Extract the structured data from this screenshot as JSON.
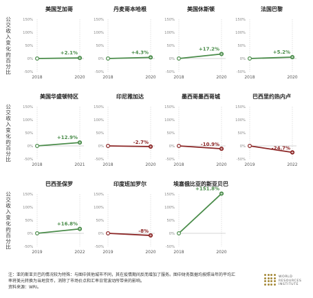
{
  "panels": [
    {
      "title": "美国芝加哥",
      "start": "2018",
      "end": "2020",
      "change": 2.1,
      "label": "+2.1%"
    },
    {
      "title": "丹麦哥本哈根",
      "start": "2018",
      "end": "2020",
      "change": 4.3,
      "label": "+4.3%"
    },
    {
      "title": "美国休斯顿",
      "start": "2018",
      "end": "2020",
      "change": 17.2,
      "label": "+17.2%"
    },
    {
      "title": "法国巴黎",
      "start": "2018",
      "end": "2020",
      "change": 5.2,
      "label": "+5.2%"
    },
    {
      "title": "美国华盛顿特区",
      "start": "2018",
      "end": "2021",
      "change": 12.9,
      "label": "+12.9%"
    },
    {
      "title": "印尼雅加达",
      "start": "2018",
      "end": "2020",
      "change": -2.7,
      "label": "-2.7%"
    },
    {
      "title": "墨西哥墨西哥城",
      "start": "2018",
      "end": "2020",
      "change": -10.9,
      "label": "-10.9%"
    },
    {
      "title": "巴西里约热内卢",
      "start": "2019",
      "end": "2022",
      "change": -24.7,
      "label": "-24.7%"
    },
    {
      "title": "巴西圣保罗",
      "start": "2019",
      "end": "2022",
      "change": 16.8,
      "label": "+16.8%"
    },
    {
      "title": "印度班加罗尔",
      "start": "2019",
      "end": "2020",
      "change": -8,
      "label": "-8%"
    },
    {
      "title": "埃塞俄比亚的斯亚贝巴",
      "start": "2018",
      "end": "2020",
      "change": 151.8,
      "label": "+151.8%"
    }
  ],
  "chart_data": {
    "type": "line",
    "ylabel": "公交收入变化的百分比",
    "ylim": [
      -50,
      150
    ],
    "yticks": [
      "150%",
      "100%",
      "50%",
      "0%",
      "-50%"
    ],
    "grid": true
  },
  "colors": {
    "positive": "#4a8c4a",
    "negative": "#8b2525",
    "grid": "#cccccc",
    "axis": "#999999"
  },
  "footnote": [
    "注：亚的斯亚贝巴的情况较为特殊：与图中其他城市不同，其在疫情期间反而增加了服务。图中财务数据均按照当年的平均汇",
    "率将美元转换为当地货币，消除了市场价点和汇率日常波动所带来的影响。",
    "资料来源：WRI。"
  ],
  "logo": {
    "lines": [
      "WORLD",
      "RESOURCES",
      "INSTITUTE"
    ]
  }
}
